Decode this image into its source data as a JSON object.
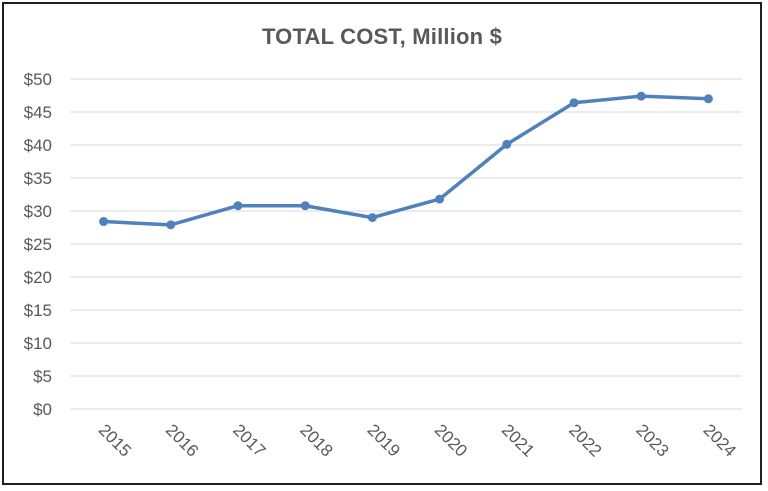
{
  "chart_data": {
    "type": "line",
    "title": "TOTAL COST, Million $",
    "xlabel": "",
    "ylabel": "",
    "categories": [
      "2015",
      "2016",
      "2017",
      "2018",
      "2019",
      "2020",
      "2021",
      "2022",
      "2023",
      "2024"
    ],
    "values": [
      28.4,
      27.9,
      30.8,
      30.8,
      29.0,
      31.8,
      40.1,
      46.4,
      47.4,
      47.0
    ],
    "y_tick_labels": [
      "$0",
      "$5",
      "$10",
      "$15",
      "$20",
      "$25",
      "$30",
      "$35",
      "$40",
      "$45",
      "$50"
    ],
    "ylim": [
      0,
      50
    ],
    "y_tick_step": 5,
    "grid": true,
    "legend": "none",
    "colors": {
      "line": "#4f81bd",
      "grid": "#d9d9d9",
      "text": "#595959",
      "border": "#1f1f1f"
    }
  }
}
